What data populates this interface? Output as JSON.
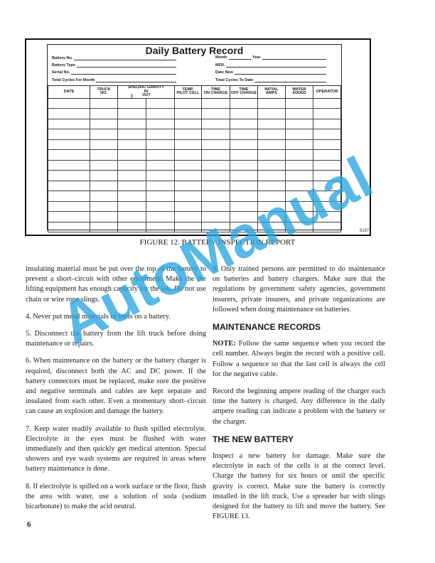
{
  "figure": {
    "form_title": "Daily Battery Record",
    "left_fields": [
      "Battery No.",
      "Battery Type",
      "Serial No.",
      "Total Cycles For Month"
    ],
    "right_fields": {
      "month": "Month",
      "year": "Year",
      "mfr": "MFR.",
      "date_new": "Date New",
      "total_cycles": "Total Cycles To Date"
    },
    "columns": {
      "date": "DATE",
      "truck": [
        "TRUCK",
        "NO."
      ],
      "sg": "SPECIFIC GRAVITY",
      "sg_in": "IN",
      "sg_out": "OUT",
      "temp": [
        "TEMP.",
        "PILOT CELL"
      ],
      "on": [
        "TIME",
        "ON CHARGE"
      ],
      "off": [
        "TIME",
        "OFF CHARGE"
      ],
      "amps": [
        "INITIAL",
        "AMPS"
      ],
      "water": [
        "WATER",
        "ADDED"
      ],
      "operator": "OPERATOR"
    },
    "code": "6197",
    "caption": "FIGURE 12. BATTERY INSPECTION REPORT"
  },
  "left_column": [
    "insulating material must be put over the top of the battery to prevent a short–circuit with other equipment. Make the the lifting equipment has enough capacity for the job. Do not use chain or wire rope slings.",
    "4. Never put metal materials or tools on a battery.",
    "5. Disconnect the battery from the lift truck before doing maintenance or repairs.",
    "6. When maintenance on the battery or the battery charger is required, disconnect both the AC and DC power. If the battery connectors must be replaced, make sure the positive and negative terminals and cables are kept separate and insulated from each other. Even a momentary short–circuit can cause an explosion and damage the battery.",
    "7. Keep water readily available to flush spilled electrolyte. Electrolyte in the eyes must be flushed with water immediately and then quickly get medical attention. Special showers and eye wash systems are required in areas where battery maintenance is done.",
    "8. If electrolyte is spilled on a work surface or the floor, flush the area with water, use a solution of soda (sodium bicarbonate) to make the acid neutral."
  ],
  "right_column": {
    "item9": "9. Only trained persons are permitted to do maintenance on batteries and battery chargers. Make sure that the regulations by government safety agencies, government insurers, private insurers, and private organizations are followed when doing maintenance on batteries.",
    "heading1": "MAINTENANCE RECORDS",
    "note_label": "NOTE:",
    "note_text": " Follow the same sequence when you record the cell number. Always begin the record with a positive cell. Follow a sequence so that the last cell is always the cell for the negative cable.",
    "record_para": "Record the beginning ampere reading of the charger each time the battery is charged. Any difference in the daily ampere reading can indicate a problem with the battery or the charger.",
    "heading2": "THE NEW BATTERY",
    "new_battery_para": "Inspect a new battery for damage. Make sure the electrolyte in each of the cells is at the correct level. Charge the battery for six hours or until the specific gravity is correct. Make sure the battery is correctly installed in the lift truck. Use a spreader bar with slings designed for the battery to lift and move the battery. See FIGURE 13."
  },
  "page_number": "6",
  "watermark": "AutoManual",
  "watermark_color": "#2aa6e0"
}
